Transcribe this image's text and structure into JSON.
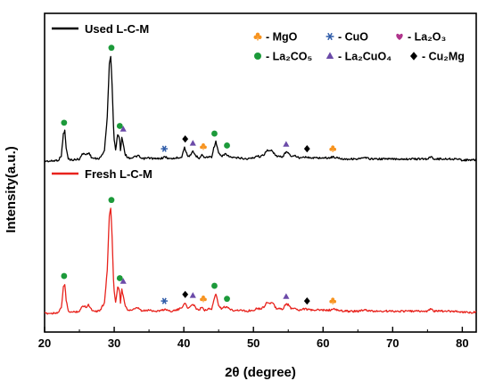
{
  "chart_data": {
    "type": "line",
    "title": "",
    "xlabel": "2θ (degree)",
    "ylabel": "Intensity(a.u.)",
    "xlim": [
      20,
      82
    ],
    "xticks": [
      20,
      30,
      40,
      50,
      60,
      70,
      80
    ],
    "grid": false,
    "y_tick_labels_shown": false,
    "legend_placement": "top-right",
    "colors": {
      "used": "#000000",
      "fresh": "#e8231d",
      "MgO": "#f7931e",
      "CuO": "#2e5ba8",
      "La2O3": "#b0348c",
      "La2CO5": "#1c9a3a",
      "La2CuO4": "#6b4aa8",
      "Cu2Mg": "#000000"
    },
    "series": [
      {
        "name": "Used L-C-M",
        "label_text": "Used L-C-M",
        "color": "#000000",
        "baseline": 0.0,
        "x": [
          20,
          21,
          22,
          22.4,
          22.7,
          22.9,
          23.1,
          23.4,
          24,
          25,
          25.5,
          26,
          26.3,
          26.8,
          27.5,
          28,
          28.6,
          29,
          29.3,
          29.5,
          29.7,
          29.95,
          30.2,
          30.5,
          30.75,
          30.9,
          31.1,
          31.3,
          31.6,
          32,
          32.5,
          33,
          33.4,
          34,
          35,
          36,
          37,
          37.3,
          38,
          39,
          39.7,
          40.1,
          40.5,
          41,
          41.3,
          41.7,
          42.2,
          42.6,
          43,
          43.5,
          44,
          44.3,
          44.6,
          45,
          45.5,
          45.9,
          46.3,
          47,
          48,
          49,
          50,
          50.5,
          51,
          51.5,
          51.9,
          52.3,
          52.7,
          53.2,
          53.7,
          54.2,
          54.6,
          55,
          55.5,
          56,
          56.5,
          57,
          57.6,
          58,
          59,
          60,
          61,
          61.4,
          62,
          63,
          64,
          65,
          66,
          67,
          68,
          69,
          70,
          71,
          72,
          73,
          74,
          75,
          75.5,
          76,
          77,
          78,
          79,
          80,
          81,
          82
        ],
        "y": [
          0,
          0,
          1,
          5,
          25,
          28,
          12,
          2,
          1,
          2,
          7,
          6,
          8,
          3,
          2,
          3,
          10,
          40,
          90,
          97,
          70,
          22,
          10,
          25,
          22,
          10,
          22,
          16,
          6,
          3,
          3,
          4,
          5,
          2,
          3,
          2,
          3,
          4,
          2,
          3,
          4,
          13,
          5,
          5,
          9,
          5,
          3,
          6,
          3,
          4,
          4,
          12,
          18,
          7,
          4,
          7,
          5,
          3,
          3,
          2,
          3,
          5,
          4,
          6,
          10,
          9,
          10,
          5,
          4,
          4,
          8,
          8,
          4,
          5,
          3,
          4,
          4,
          3,
          3,
          3,
          3,
          4,
          3,
          2,
          2,
          2,
          3,
          2,
          2,
          2,
          2,
          2,
          2,
          2,
          2,
          2,
          4,
          2,
          2,
          2,
          2,
          1,
          1,
          1
        ]
      },
      {
        "name": "Fresh L-C-M",
        "label_text": "Fresh L-C-M",
        "color": "#e8231d",
        "baseline": 0.0,
        "x": [
          20,
          21,
          22,
          22.4,
          22.7,
          22.9,
          23.1,
          23.4,
          24,
          25,
          25.5,
          26,
          26.3,
          26.8,
          27.5,
          28,
          28.6,
          29,
          29.3,
          29.5,
          29.7,
          29.95,
          30.2,
          30.5,
          30.75,
          30.9,
          31.1,
          31.3,
          31.6,
          32,
          32.5,
          33,
          33.4,
          34,
          35,
          36,
          37,
          37.3,
          38,
          39,
          39.7,
          40.1,
          40.5,
          41,
          41.3,
          41.7,
          42.2,
          42.6,
          43,
          43.5,
          44,
          44.3,
          44.6,
          45,
          45.5,
          45.9,
          46.3,
          47,
          48,
          49,
          50,
          50.5,
          51,
          51.5,
          51.9,
          52.3,
          52.7,
          53.2,
          53.7,
          54.2,
          54.6,
          55,
          55.5,
          56,
          56.5,
          57,
          57.6,
          58,
          59,
          60,
          61,
          61.4,
          62,
          63,
          64,
          65,
          66,
          67,
          68,
          69,
          70,
          71,
          72,
          73,
          74,
          75,
          75.5,
          76,
          77,
          78,
          79,
          80,
          81,
          82
        ],
        "y": [
          0,
          0,
          1,
          5,
          24,
          27,
          12,
          2,
          1,
          2,
          7,
          6,
          8,
          3,
          2,
          3,
          10,
          40,
          90,
          97,
          70,
          22,
          10,
          25,
          22,
          10,
          22,
          16,
          6,
          3,
          3,
          4,
          5,
          2,
          3,
          2,
          3,
          4,
          2,
          3,
          5,
          10,
          5,
          6,
          9,
          5,
          3,
          6,
          3,
          4,
          4,
          12,
          18,
          7,
          4,
          6,
          5,
          3,
          3,
          2,
          3,
          5,
          4,
          6,
          10,
          9,
          10,
          5,
          4,
          4,
          8,
          8,
          4,
          5,
          3,
          4,
          4,
          3,
          3,
          3,
          3,
          4,
          3,
          2,
          2,
          2,
          3,
          2,
          2,
          2,
          2,
          2,
          2,
          2,
          2,
          2,
          4,
          2,
          2,
          2,
          2,
          1,
          1,
          1
        ]
      }
    ],
    "legend": [
      {
        "key": "MgO",
        "symbol": "club",
        "color": "#f7931e",
        "text": "- MgO"
      },
      {
        "key": "CuO",
        "symbol": "asterisk",
        "color": "#2e5ba8",
        "text": "- CuO"
      },
      {
        "key": "La2O3",
        "symbol": "heart",
        "color": "#b0348c",
        "text": "- La₂O₃"
      },
      {
        "key": "La2CO5",
        "symbol": "circle",
        "color": "#1c9a3a",
        "text": "- La₂CO₅"
      },
      {
        "key": "La2CuO4",
        "symbol": "triangle",
        "color": "#6b4aa8",
        "text": "- La₂CuO₄"
      },
      {
        "key": "Cu2Mg",
        "symbol": "diamond",
        "color": "#000000",
        "text": "- Cu₂Mg"
      }
    ],
    "peak_markers": [
      {
        "x": 22.8,
        "phase": "La2CO5"
      },
      {
        "x": 29.6,
        "phase": "La2CO5"
      },
      {
        "x": 30.8,
        "phase": "La2CO5"
      },
      {
        "x": 31.3,
        "phase": "La2CuO4"
      },
      {
        "x": 37.2,
        "phase": "CuO"
      },
      {
        "x": 40.2,
        "phase": "Cu2Mg"
      },
      {
        "x": 41.3,
        "phase": "La2CuO4"
      },
      {
        "x": 42.8,
        "phase": "MgO"
      },
      {
        "x": 44.4,
        "phase": "La2CO5"
      },
      {
        "x": 46.2,
        "phase": "La2CO5"
      },
      {
        "x": 54.7,
        "phase": "La2CuO4"
      },
      {
        "x": 57.7,
        "phase": "Cu2Mg"
      },
      {
        "x": 61.4,
        "phase": "MgO"
      }
    ]
  }
}
